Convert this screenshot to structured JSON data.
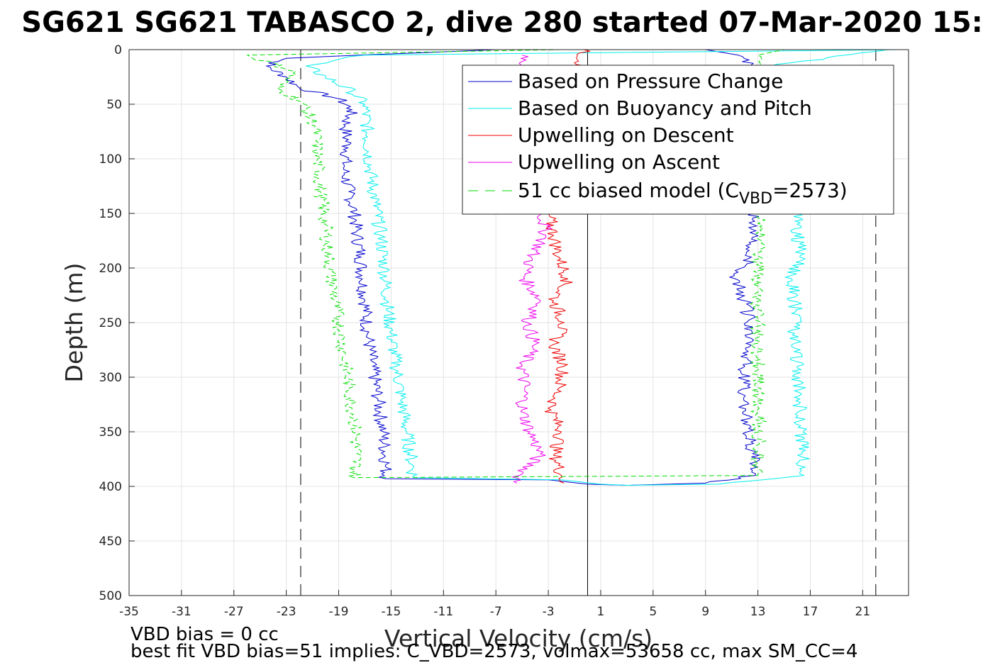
{
  "chart_data": {
    "type": "line",
    "title": "SG621 SG621 TABASCO 2, dive 280 started 07-Mar-2020 15:",
    "xlabel": "Vertical Velocity (cm/s)",
    "ylabel": "Depth (m)",
    "xlim": [
      -35,
      24.5
    ],
    "ylim": [
      0,
      500
    ],
    "y_reversed": true,
    "grid": true,
    "legend_position": "top-right",
    "x_ticks": [
      "-35",
      "-31",
      "-27",
      "-23",
      "-19",
      "-15",
      "-11",
      "-7",
      "-3",
      "1",
      "5",
      "9",
      "13",
      "17",
      "21"
    ],
    "y_ticks": [
      "0",
      "50",
      "100",
      "150",
      "200",
      "250",
      "300",
      "350",
      "400",
      "450",
      "500"
    ],
    "reference_lines": {
      "solid_x": 0,
      "dashed_x": [
        -21.9,
        22
      ]
    },
    "legend": {
      "pressure": "Based on Pressure Change",
      "buoyancy": "Based on Buoyancy and Pitch",
      "up_desc": "Upwelling on Descent",
      "up_asc": "Upwelling on Ascent",
      "model_prefix": "51 cc biased model (C",
      "model_sub": "VBD",
      "model_suffix": "=2573)"
    },
    "colors": {
      "pressure": "#0000cc",
      "buoyancy": "#00eeee",
      "up_desc": "#ee0000",
      "up_asc": "#ee00ee",
      "model": "#00dd00"
    },
    "series": [
      {
        "name": "Based on Pressure Change",
        "key": "pressure",
        "points": [
          [
            -7,
            0
          ],
          [
            -23,
            8
          ],
          [
            -24.5,
            15
          ],
          [
            -23,
            25
          ],
          [
            -22,
            35
          ],
          [
            -19,
            45
          ],
          [
            -18,
            55
          ],
          [
            -18.5,
            70
          ],
          [
            -18.3,
            90
          ],
          [
            -18.6,
            110
          ],
          [
            -18.2,
            130
          ],
          [
            -17.8,
            150
          ],
          [
            -17.6,
            170
          ],
          [
            -17.3,
            190
          ],
          [
            -17.2,
            210
          ],
          [
            -17.0,
            230
          ],
          [
            -16.8,
            260
          ],
          [
            -16.4,
            290
          ],
          [
            -16.0,
            320
          ],
          [
            -15.6,
            350
          ],
          [
            -15.4,
            380
          ],
          [
            -15.4,
            393
          ],
          [
            -3,
            394
          ],
          [
            0,
            398
          ],
          [
            3,
            399
          ],
          [
            9,
            397
          ],
          [
            12.8,
            390
          ],
          [
            12.6,
            370
          ],
          [
            12.2,
            350
          ],
          [
            11.9,
            320
          ],
          [
            12.0,
            290
          ],
          [
            12.6,
            260
          ],
          [
            12.0,
            230
          ],
          [
            11.3,
            210
          ],
          [
            12.5,
            190
          ],
          [
            12.6,
            160
          ],
          [
            12.7,
            150
          ],
          [
            12.5,
            100
          ],
          [
            12.6,
            50
          ],
          [
            12.8,
            20
          ],
          [
            11.5,
            5
          ],
          [
            9,
            0
          ]
        ]
      },
      {
        "name": "Based on Buoyancy and Pitch",
        "key": "buoyancy",
        "points": [
          [
            24,
            0
          ],
          [
            -17,
            5
          ],
          [
            -21.5,
            15
          ],
          [
            -20,
            25
          ],
          [
            -18,
            38
          ],
          [
            -17,
            50
          ],
          [
            -16.8,
            80
          ],
          [
            -16.6,
            110
          ],
          [
            -16.2,
            140
          ],
          [
            -15.8,
            170
          ],
          [
            -15.5,
            200
          ],
          [
            -15.3,
            230
          ],
          [
            -15.0,
            260
          ],
          [
            -14.6,
            290
          ],
          [
            -14.2,
            320
          ],
          [
            -13.8,
            350
          ],
          [
            -13.4,
            380
          ],
          [
            -13.3,
            392
          ],
          [
            -2,
            394
          ],
          [
            1,
            398
          ],
          [
            3,
            399
          ],
          [
            10,
            398
          ],
          [
            16.5,
            390
          ],
          [
            16.4,
            370
          ],
          [
            16.2,
            340
          ],
          [
            16.2,
            320
          ],
          [
            16.0,
            290
          ],
          [
            15.8,
            260
          ],
          [
            15.9,
            240
          ],
          [
            15.6,
            210
          ],
          [
            16.2,
            190
          ],
          [
            16.0,
            160
          ],
          [
            16.0,
            150
          ],
          [
            16.0,
            100
          ],
          [
            15.5,
            50
          ],
          [
            14,
            15
          ],
          [
            23,
            0
          ]
        ]
      },
      {
        "name": "Upwelling on Descent",
        "key": "up_desc",
        "points": [
          [
            -0.3,
            0
          ],
          [
            -3,
            150
          ],
          [
            -2.6,
            170
          ],
          [
            -2.2,
            190
          ],
          [
            -1.5,
            210
          ],
          [
            -2.6,
            230
          ],
          [
            -1.8,
            250
          ],
          [
            -2.6,
            270
          ],
          [
            -1.8,
            290
          ],
          [
            -2.2,
            310
          ],
          [
            -2.8,
            330
          ],
          [
            -2.0,
            350
          ],
          [
            -2.5,
            370
          ],
          [
            -2.0,
            390
          ],
          [
            -1.8,
            397
          ]
        ]
      },
      {
        "name": "Upwelling on Ascent",
        "key": "up_asc",
        "points": [
          [
            -5,
            5
          ],
          [
            -3.5,
            150
          ],
          [
            -3.2,
            170
          ],
          [
            -4.3,
            190
          ],
          [
            -4.8,
            210
          ],
          [
            -3.6,
            230
          ],
          [
            -4.6,
            250
          ],
          [
            -4.0,
            270
          ],
          [
            -5.0,
            290
          ],
          [
            -4.8,
            310
          ],
          [
            -5.0,
            330
          ],
          [
            -4.4,
            350
          ],
          [
            -3.6,
            370
          ],
          [
            -5.2,
            390
          ],
          [
            -5.4,
            397
          ]
        ]
      },
      {
        "name": "51 cc biased model (CVBD=2573)",
        "key": "model",
        "points": [
          [
            -2,
            0
          ],
          [
            -26,
            5
          ],
          [
            -22.3,
            20
          ],
          [
            -23.7,
            35
          ],
          [
            -21.8,
            48
          ],
          [
            -20.8,
            70
          ],
          [
            -20.6,
            100
          ],
          [
            -20.4,
            130
          ],
          [
            -20.0,
            160
          ],
          [
            -19.8,
            190
          ],
          [
            -19.4,
            220
          ],
          [
            -19.0,
            250
          ],
          [
            -18.6,
            280
          ],
          [
            -18.2,
            310
          ],
          [
            -17.8,
            340
          ],
          [
            -17.6,
            370
          ],
          [
            -17.8,
            392
          ],
          [
            13.0,
            390
          ],
          [
            13.1,
            360
          ],
          [
            13.0,
            300
          ],
          [
            13.0,
            200
          ],
          [
            13.2,
            150
          ],
          [
            13.1,
            50
          ],
          [
            13.0,
            5
          ],
          [
            15,
            0
          ]
        ]
      }
    ]
  },
  "footer": {
    "line1": "VBD bias = 0 cc",
    "line2": "best fit VBD bias=51 implies: C_VBD=2573, volmax=53658 cc, max SM_CC=4"
  }
}
